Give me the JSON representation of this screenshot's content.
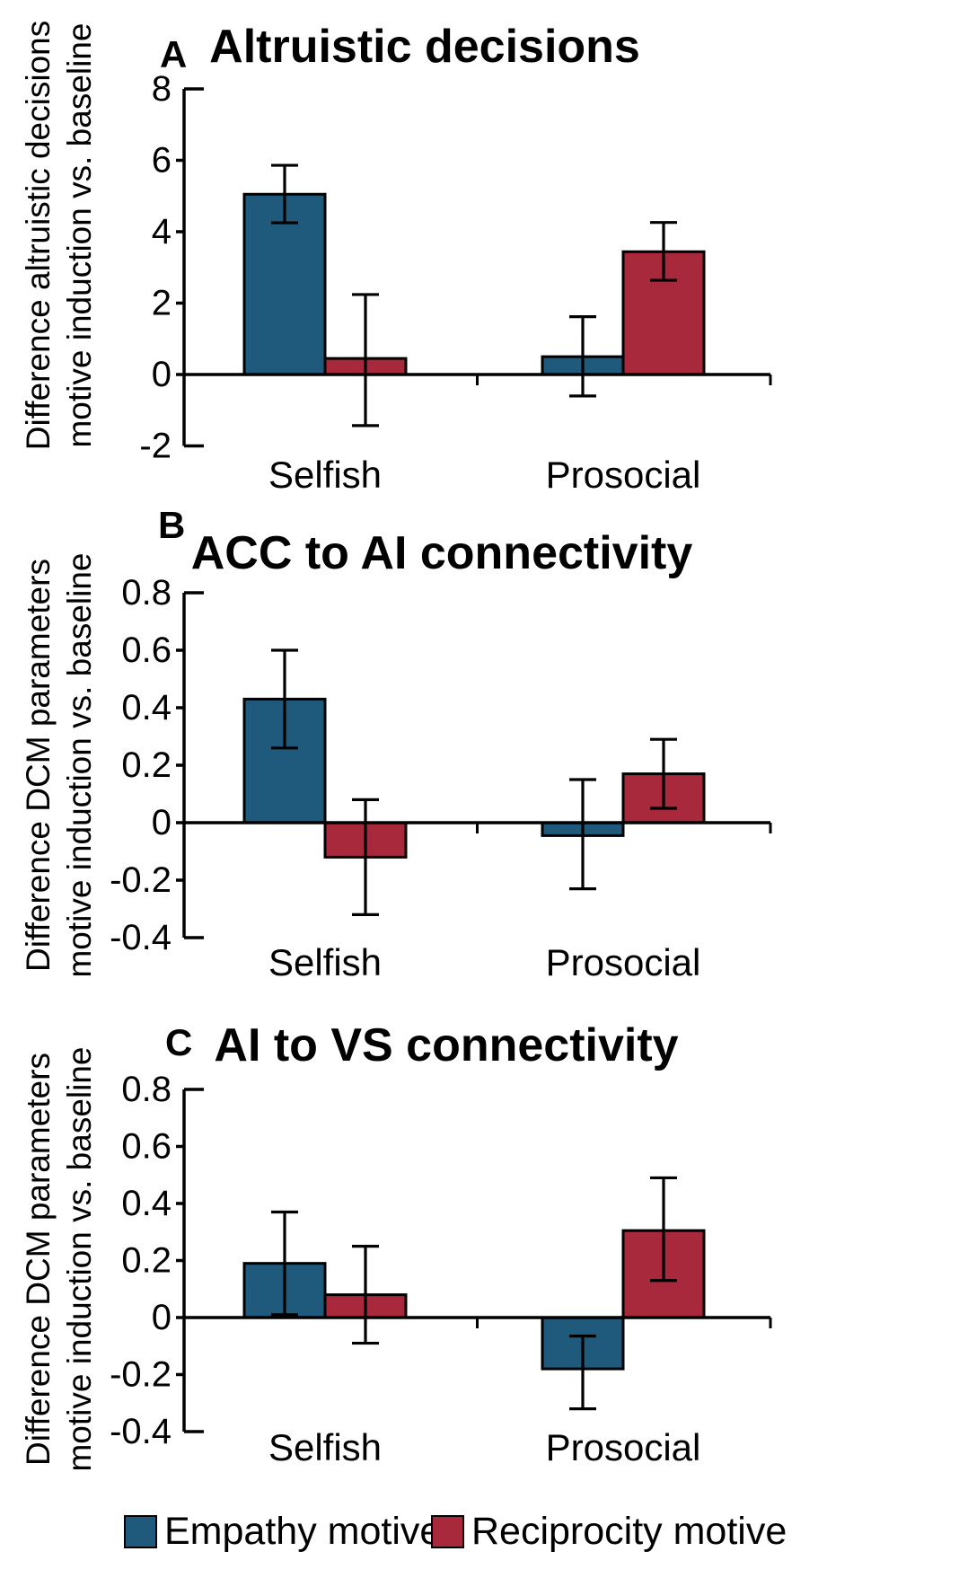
{
  "legend": {
    "items": [
      {
        "label": "Empathy motive",
        "color": "#1F5A7D"
      },
      {
        "label": "Reciprocity motive",
        "color": "#A8293C"
      }
    ]
  },
  "chart_data": [
    {
      "id": "A",
      "type": "bar",
      "panel_label": "A",
      "title": "Altruistic decisions",
      "ylabel_lines": [
        "Difference altruistic decisions",
        "motive induction vs. baseline"
      ],
      "categories": [
        "Selfish",
        "Prosocial"
      ],
      "series": [
        {
          "name": "Empathy motive",
          "color": "#1F5A7D",
          "values": [
            5.05,
            0.5
          ],
          "error_low": [
            4.25,
            -0.6
          ],
          "error_high": [
            5.86,
            1.62
          ]
        },
        {
          "name": "Reciprocity motive",
          "color": "#A8293C",
          "values": [
            0.45,
            3.44
          ],
          "error_low": [
            -1.43,
            2.64
          ],
          "error_high": [
            2.24,
            4.26
          ]
        }
      ],
      "ylim": [
        -2,
        8
      ],
      "yticks": [
        {
          "v": 8,
          "label": "8"
        },
        {
          "v": 6,
          "label": "6"
        },
        {
          "v": 4,
          "label": "4"
        },
        {
          "v": 2,
          "label": "2"
        },
        {
          "v": 0,
          "label": "0"
        },
        {
          "v": -2,
          "label": "-2"
        }
      ],
      "grid": false,
      "legend_position": "bottom"
    },
    {
      "id": "B",
      "type": "bar",
      "panel_label": "B",
      "title": "ACC to AI connectivity",
      "ylabel_lines": [
        "Difference DCM parameters",
        "motive induction vs. baseline"
      ],
      "categories": [
        "Selfish",
        "Prosocial"
      ],
      "series": [
        {
          "name": "Empathy motive",
          "color": "#1F5A7D",
          "values": [
            0.43,
            -0.045
          ],
          "error_low": [
            0.26,
            -0.23
          ],
          "error_high": [
            0.6,
            0.15
          ]
        },
        {
          "name": "Reciprocity motive",
          "color": "#A8293C",
          "values": [
            -0.12,
            0.17
          ],
          "error_low": [
            -0.32,
            0.05
          ],
          "error_high": [
            0.08,
            0.29
          ]
        }
      ],
      "ylim": [
        -0.4,
        0.8
      ],
      "yticks": [
        {
          "v": 0.8,
          "label": "0.8"
        },
        {
          "v": 0.6,
          "label": "0.6"
        },
        {
          "v": 0.4,
          "label": "0.4"
        },
        {
          "v": 0.2,
          "label": "0.2"
        },
        {
          "v": 0,
          "label": "0"
        },
        {
          "v": -0.2,
          "label": "-0.2"
        },
        {
          "v": -0.4,
          "label": "-0.4"
        }
      ],
      "grid": false,
      "legend_position": "bottom"
    },
    {
      "id": "C",
      "type": "bar",
      "panel_label": "C",
      "title": "AI to VS connectivity",
      "ylabel_lines": [
        "Difference DCM parameters",
        "motive induction vs. baseline"
      ],
      "categories": [
        "Selfish",
        "Prosocial"
      ],
      "series": [
        {
          "name": "Empathy motive",
          "color": "#1F5A7D",
          "values": [
            0.19,
            -0.18
          ],
          "error_low": [
            0.01,
            -0.32
          ],
          "error_high": [
            0.37,
            -0.065
          ]
        },
        {
          "name": "Reciprocity motive",
          "color": "#A8293C",
          "values": [
            0.08,
            0.305
          ],
          "error_low": [
            -0.09,
            0.13
          ],
          "error_high": [
            0.25,
            0.49
          ]
        }
      ],
      "ylim": [
        -0.4,
        0.8
      ],
      "yticks": [
        {
          "v": 0.8,
          "label": "0.8"
        },
        {
          "v": 0.6,
          "label": "0.6"
        },
        {
          "v": 0.4,
          "label": "0.4"
        },
        {
          "v": 0.2,
          "label": "0.2"
        },
        {
          "v": 0,
          "label": "0"
        },
        {
          "v": -0.2,
          "label": "-0.2"
        },
        {
          "v": -0.4,
          "label": "-0.4"
        }
      ],
      "grid": false,
      "legend_position": "bottom"
    }
  ]
}
